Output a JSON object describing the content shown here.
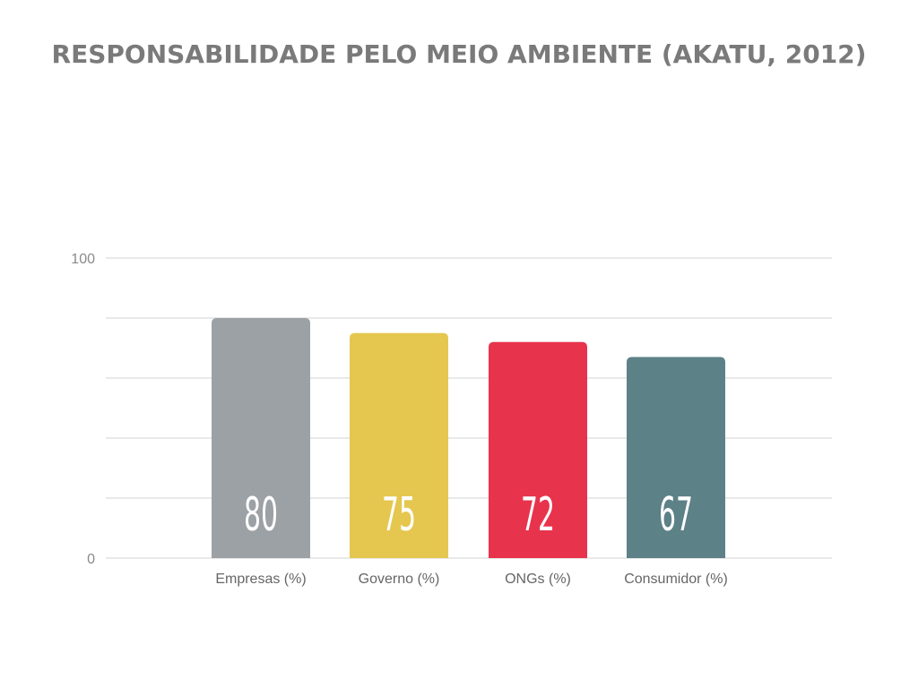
{
  "chart_data": {
    "type": "bar",
    "title": "RESPONSABILIDADE PELO MEIO AMBIENTE (AKATU, 2012)",
    "categories": [
      "Empresas  (%)",
      "Governo (%)",
      "ONGs (%)",
      "Consumidor (%)"
    ],
    "values": [
      80,
      75,
      72,
      67
    ],
    "value_labels": [
      "80",
      "75",
      "72",
      "67"
    ],
    "colors": [
      "#9ca1a5",
      "#e5c74f",
      "#e8334d",
      "#5c8187"
    ],
    "ylim": [
      0,
      100
    ],
    "yticks": [
      0,
      20,
      40,
      60,
      80,
      100
    ],
    "ytick_labels": [
      "0",
      "",
      "",
      "",
      "",
      "100"
    ],
    "grid": true,
    "xlabel": "",
    "ylabel": ""
  }
}
